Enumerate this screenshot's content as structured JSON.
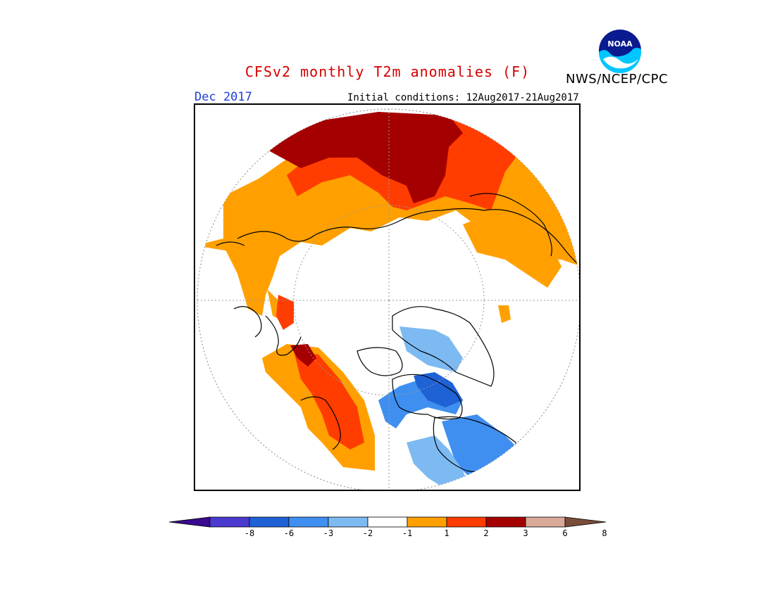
{
  "header": {
    "title": "CFSv2 monthly T2m anomalies (F)",
    "target_month": "Dec 2017",
    "initial_conditions": "Initial conditions: 12Aug2017-21Aug2017",
    "agency": "NWS/NCEP/CPC"
  },
  "logo": {
    "text": "NOAA"
  },
  "colors": {
    "title": "#d40000",
    "month": "#1f3fd6",
    "palette": [
      "#3a0a8f",
      "#4a3ad0",
      "#1f62d6",
      "#3f8ff0",
      "#7dbaf2",
      "#ffffff",
      "#ffa000",
      "#ff3d00",
      "#a50000",
      "#d9a999",
      "#7a4c3a"
    ]
  },
  "colorbar": {
    "tick_labels": [
      "-8",
      "-6",
      "-3",
      "-2",
      "-1",
      "1",
      "2",
      "3",
      "6",
      "8"
    ]
  },
  "map": {
    "projection": "north polar stereographic",
    "legend_placement": "bottom"
  }
}
